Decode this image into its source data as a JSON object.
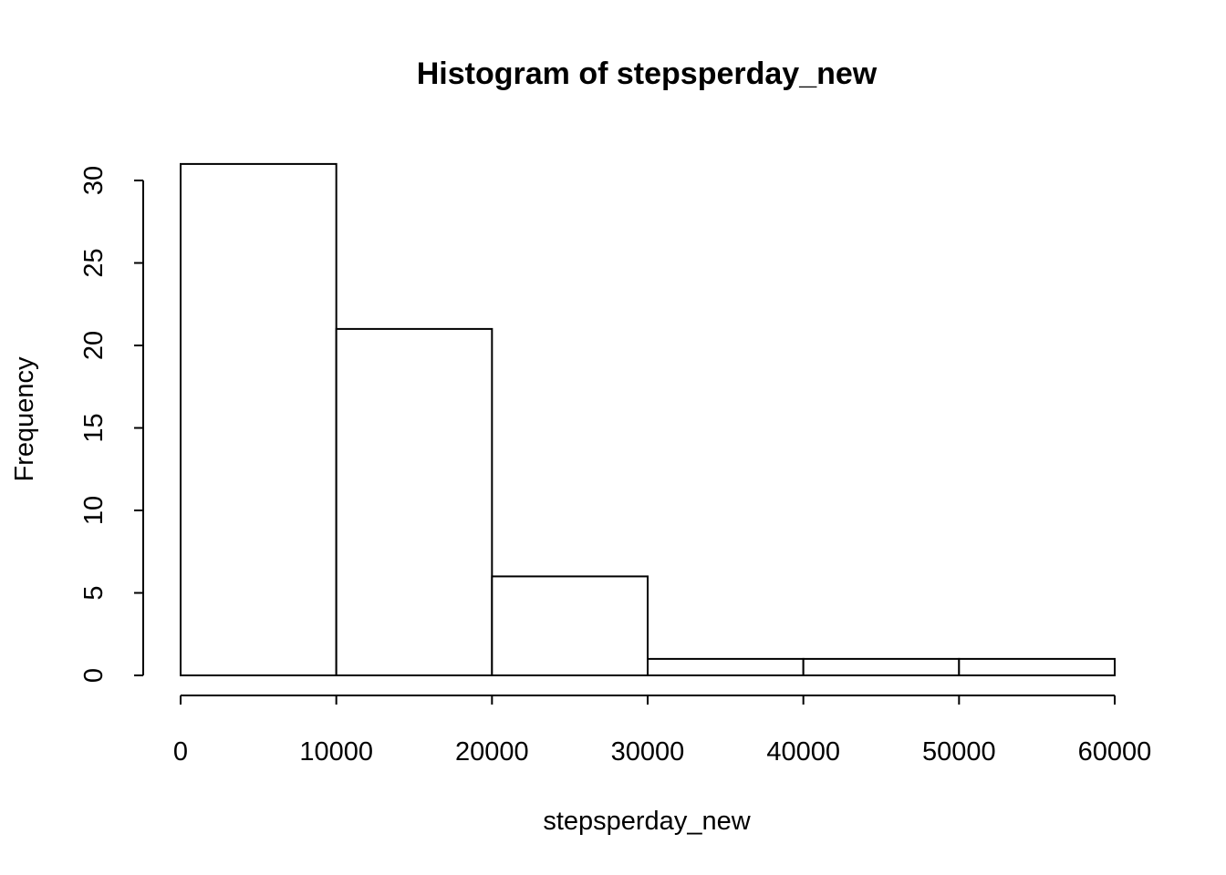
{
  "chart_data": {
    "type": "bar",
    "histogram": true,
    "title": "Histogram of stepsperday_new",
    "xlabel": "stepsperday_new",
    "ylabel": "Frequency",
    "bin_edges": [
      0,
      10000,
      20000,
      30000,
      40000,
      50000,
      60000
    ],
    "categories": [
      "0-10000",
      "10000-20000",
      "20000-30000",
      "30000-40000",
      "40000-50000",
      "50000-60000"
    ],
    "values": [
      31,
      21,
      6,
      1,
      1,
      1
    ],
    "xlim": [
      0,
      60000
    ],
    "ylim": [
      0,
      31
    ],
    "x_ticks": [
      0,
      10000,
      20000,
      30000,
      40000,
      50000,
      60000
    ],
    "x_tick_labels": [
      "0",
      "10000",
      "20000",
      "30000",
      "40000",
      "50000",
      "60000"
    ],
    "y_ticks": [
      0,
      5,
      10,
      15,
      20,
      25,
      30
    ],
    "y_tick_labels": [
      "0",
      "5",
      "10",
      "15",
      "20",
      "25",
      "30"
    ],
    "grid": false,
    "legend": "none",
    "colors": {
      "bar_fill": "#ffffff",
      "bar_stroke": "#000000",
      "axis": "#000000",
      "background": "#ffffff"
    }
  }
}
